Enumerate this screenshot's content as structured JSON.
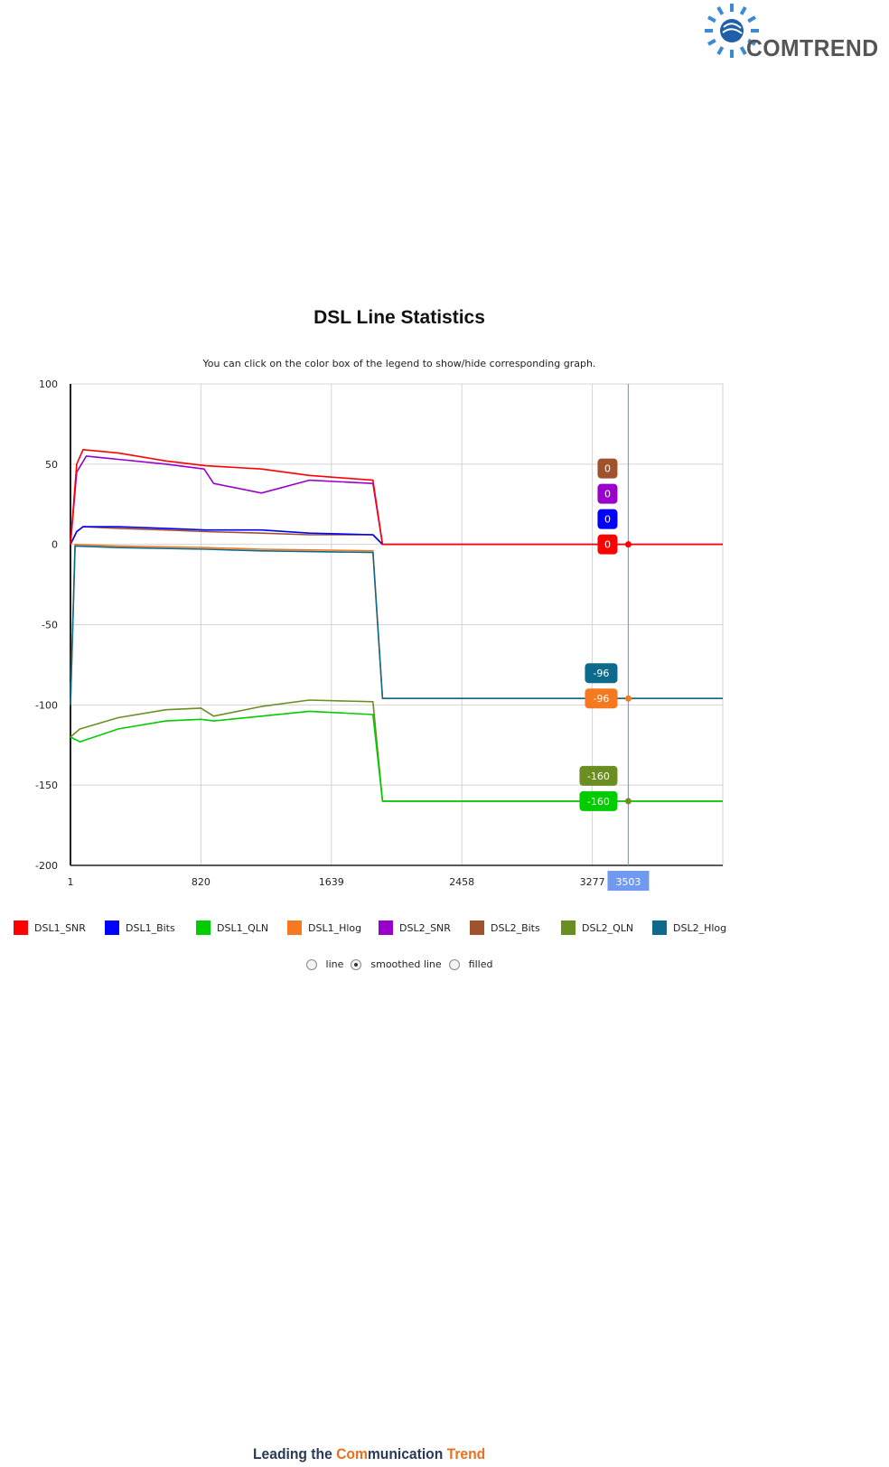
{
  "brand": {
    "name": "COMTREND"
  },
  "page": {
    "title": "DSL Line Statistics",
    "subtitle": "You can click on the color box of the legend to show/hide corresponding graph."
  },
  "colors": {
    "DSL1_SNR": "#ff0000",
    "DSL1_Bits": "#0000ff",
    "DSL1_QLN": "#00cc00",
    "DSL1_Hlog": "#f47920",
    "DSL2_SNR": "#9900cc",
    "DSL2_Bits": "#a0522d",
    "DSL2_QLN": "#6b8e23",
    "DSL2_Hlog": "#0e6a8a"
  },
  "legend": [
    {
      "label": "DSL1_SNR",
      "color": "#ff0000"
    },
    {
      "label": "DSL1_Bits",
      "color": "#0000ff"
    },
    {
      "label": "DSL1_QLN",
      "color": "#00cc00"
    },
    {
      "label": "DSL1_Hlog",
      "color": "#f47920"
    },
    {
      "label": "DSL2_SNR",
      "color": "#9900cc"
    },
    {
      "label": "DSL2_Bits",
      "color": "#a0522d"
    },
    {
      "label": "DSL2_QLN",
      "color": "#6b8e23"
    },
    {
      "label": "DSL2_Hlog",
      "color": "#0e6a8a"
    }
  ],
  "modes": [
    {
      "label": "line",
      "checked": false
    },
    {
      "label": "smoothed line",
      "checked": true
    },
    {
      "label": "filled",
      "checked": false
    }
  ],
  "chart_data": {
    "type": "line",
    "xlim": [
      1,
      4096
    ],
    "ylim": [
      -200,
      100
    ],
    "xticks": [
      "1",
      "820",
      "1639",
      "2458",
      "3277"
    ],
    "yticks": [
      "100",
      "50",
      "0",
      "-50",
      "-100",
      "-150",
      "-200"
    ],
    "grid": true,
    "legend_position": "bottom",
    "crosshair": {
      "x": 3503,
      "x_label": "3503",
      "tooltips": [
        {
          "series": "DSL2_Bits",
          "value": "0"
        },
        {
          "series": "DSL2_SNR",
          "value": "0"
        },
        {
          "series": "DSL1_Bits",
          "value": "0"
        },
        {
          "series": "DSL1_SNR",
          "value": "0"
        },
        {
          "series": "DSL2_Hlog",
          "value": "-96"
        },
        {
          "series": "DSL1_Hlog",
          "value": "-96"
        },
        {
          "series": "DSL2_QLN",
          "value": "-160"
        },
        {
          "series": "DSL1_QLN",
          "value": "-160"
        }
      ]
    },
    "series": [
      {
        "name": "DSL1_SNR",
        "x": [
          1,
          40,
          80,
          300,
          600,
          850,
          1200,
          1500,
          1900,
          1960,
          4096
        ],
        "y": [
          0,
          50,
          59,
          57,
          52,
          49,
          47,
          43,
          40,
          0,
          0
        ]
      },
      {
        "name": "DSL2_SNR",
        "x": [
          1,
          40,
          100,
          300,
          600,
          840,
          900,
          1200,
          1500,
          1900,
          1960,
          4096
        ],
        "y": [
          0,
          45,
          55,
          53,
          50,
          47,
          38,
          32,
          40,
          38,
          0,
          0
        ]
      },
      {
        "name": "DSL1_Bits",
        "x": [
          1,
          40,
          80,
          300,
          600,
          850,
          1200,
          1500,
          1900,
          1960,
          4096
        ],
        "y": [
          0,
          8,
          11,
          11,
          10,
          9,
          9,
          7,
          6,
          0,
          0
        ]
      },
      {
        "name": "DSL2_Bits",
        "x": [
          1,
          40,
          80,
          300,
          600,
          850,
          1200,
          1500,
          1900,
          1960,
          4096
        ],
        "y": [
          0,
          8,
          11,
          10,
          9,
          8,
          7,
          6,
          6,
          0,
          0
        ]
      },
      {
        "name": "DSL1_Hlog",
        "x": [
          1,
          30,
          300,
          850,
          1200,
          1900,
          1960,
          4096
        ],
        "y": [
          -100,
          0,
          -1,
          -2,
          -3,
          -4,
          -96,
          -96
        ]
      },
      {
        "name": "DSL2_Hlog",
        "x": [
          1,
          30,
          300,
          850,
          1200,
          1900,
          1960,
          4096
        ],
        "y": [
          -100,
          -1,
          -2,
          -3,
          -4,
          -5,
          -96,
          -96
        ]
      },
      {
        "name": "DSL1_QLN",
        "x": [
          1,
          60,
          300,
          600,
          820,
          900,
          1200,
          1500,
          1900,
          1960,
          4096
        ],
        "y": [
          -120,
          -123,
          -115,
          -110,
          -109,
          -110,
          -107,
          -104,
          -106,
          -160,
          -160
        ]
      },
      {
        "name": "DSL2_QLN",
        "x": [
          1,
          60,
          300,
          600,
          820,
          900,
          1200,
          1500,
          1900,
          1960,
          4096
        ],
        "y": [
          -120,
          -115,
          -108,
          -103,
          -102,
          -107,
          -101,
          -97,
          -98,
          -160,
          -160
        ]
      }
    ]
  },
  "footer": {
    "text_1": "Leading the ",
    "text_2": "Com",
    "text_3": "munication ",
    "text_4": "Trend"
  }
}
